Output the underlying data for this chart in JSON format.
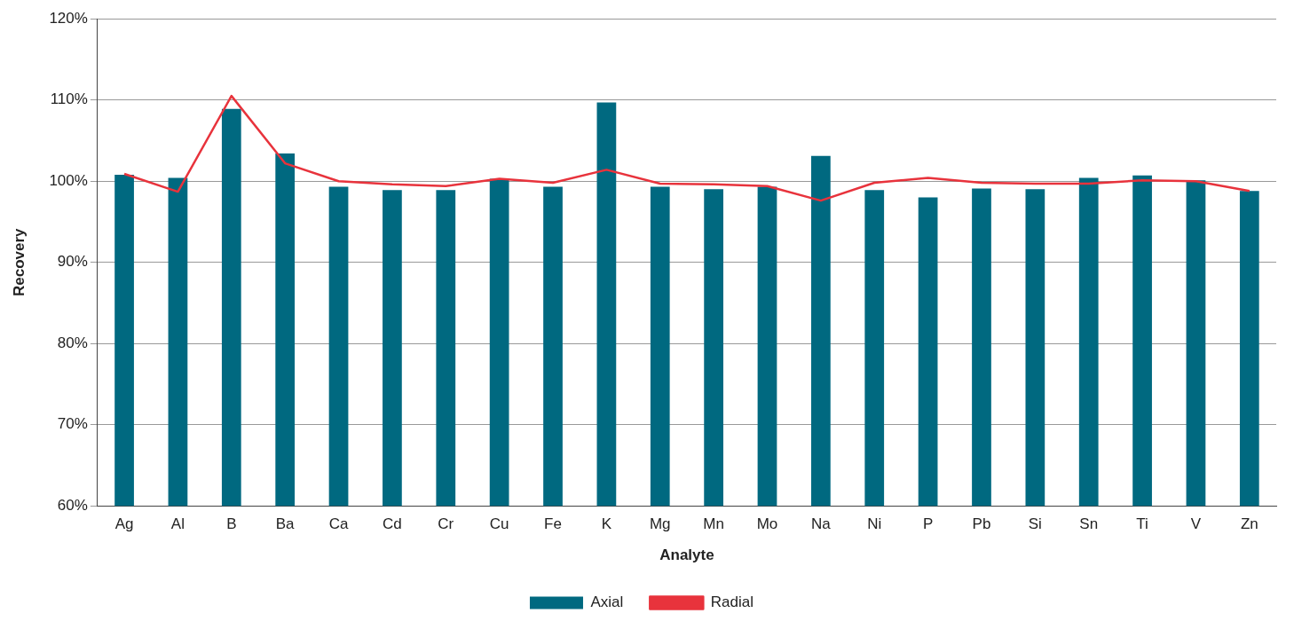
{
  "chart_data": {
    "type": "bar",
    "xlabel": "Analyte",
    "ylabel": "Recovery",
    "categories": [
      "Ag",
      "Al",
      "B",
      "Ba",
      "Ca",
      "Cd",
      "Cr",
      "Cu",
      "Fe",
      "K",
      "Mg",
      "Mn",
      "Mo",
      "Na",
      "Ni",
      "P",
      "Pb",
      "Si",
      "Sn",
      "Ti",
      "V",
      "Zn"
    ],
    "series": [
      {
        "name": "Axial",
        "color": "#006980",
        "values": [
          100.8,
          100.4,
          108.9,
          103.4,
          99.3,
          98.9,
          98.9,
          100.3,
          99.3,
          109.7,
          99.3,
          99.0,
          99.3,
          103.1,
          98.9,
          98.0,
          99.1,
          99.0,
          100.4,
          100.7,
          100.1,
          98.8
        ]
      },
      {
        "name": "Radial",
        "type": "line",
        "color": "#e8333c",
        "values": [
          100.9,
          98.7,
          110.5,
          102.2,
          100.0,
          99.6,
          99.4,
          100.3,
          99.8,
          101.4,
          99.7,
          99.6,
          99.4,
          97.6,
          99.8,
          100.4,
          99.8,
          99.7,
          99.7,
          100.1,
          100.0,
          98.8
        ]
      }
    ],
    "ylim": [
      60,
      120
    ],
    "yticks": [
      {
        "value": 60,
        "label": "60%"
      },
      {
        "value": 70,
        "label": "70%"
      },
      {
        "value": 80,
        "label": "80%"
      },
      {
        "value": 90,
        "label": "90%"
      },
      {
        "value": 100,
        "label": "100%"
      },
      {
        "value": 110,
        "label": "110%"
      },
      {
        "value": 120,
        "label": "120%"
      }
    ],
    "grid": "y",
    "legend": "bottom",
    "marker": "none",
    "line_style": "solid"
  }
}
